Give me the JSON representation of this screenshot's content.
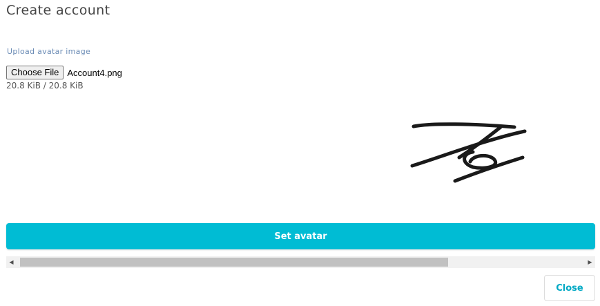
{
  "dialog": {
    "title": "Create account"
  },
  "upload": {
    "label": "Upload avatar image",
    "choose_file_label": "Choose File",
    "file_name": "Account4.png",
    "progress_text": "20.8 KiB / 20.8 KiB",
    "progress_fraction": 1.0
  },
  "actions": {
    "set_avatar_label": "Set avatar",
    "close_label": "Close"
  },
  "colors": {
    "accent": "#00bcd4",
    "close_text": "#00a9c4",
    "label_text": "#6a8bb5"
  },
  "icons": {
    "scroll_left": "triangle-left",
    "scroll_right": "triangle-right"
  }
}
